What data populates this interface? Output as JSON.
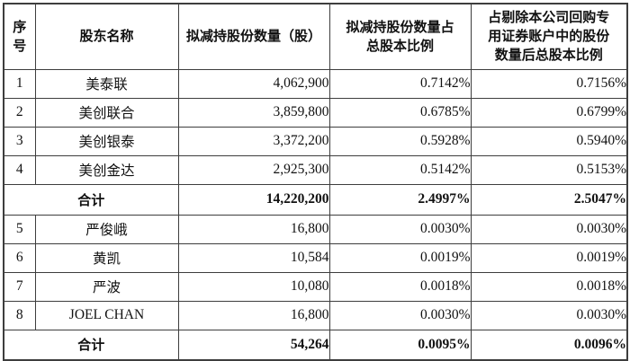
{
  "table": {
    "columns": [
      {
        "label": "序\n号"
      },
      {
        "label": "股东名称"
      },
      {
        "label": "拟减持股份数量（股）"
      },
      {
        "label": "拟减持股份数量占\n总股本比例"
      },
      {
        "label": "占剔除本公司回购专\n用证券账户中的股份\n数量后总股本比例"
      }
    ],
    "rows": [
      {
        "type": "data",
        "no": "1",
        "name": "美泰联",
        "shares": "4,062,900",
        "pct_total": "0.7142%",
        "pct_ex_buyback": "0.7156%"
      },
      {
        "type": "data",
        "no": "2",
        "name": "美创联合",
        "shares": "3,859,800",
        "pct_total": "0.6785%",
        "pct_ex_buyback": "0.6799%"
      },
      {
        "type": "data",
        "no": "3",
        "name": "美创银泰",
        "shares": "3,372,200",
        "pct_total": "0.5928%",
        "pct_ex_buyback": "0.5940%"
      },
      {
        "type": "data",
        "no": "4",
        "name": "美创金达",
        "shares": "2,925,300",
        "pct_total": "0.5142%",
        "pct_ex_buyback": "0.5153%"
      },
      {
        "type": "total",
        "label": "合计",
        "shares": "14,220,200",
        "pct_total": "2.4997%",
        "pct_ex_buyback": "2.5047%"
      },
      {
        "type": "data",
        "no": "5",
        "name": "严俊峨",
        "shares": "16,800",
        "pct_total": "0.0030%",
        "pct_ex_buyback": "0.0030%"
      },
      {
        "type": "data",
        "no": "6",
        "name": "黄凯",
        "shares": "10,584",
        "pct_total": "0.0019%",
        "pct_ex_buyback": "0.0019%"
      },
      {
        "type": "data",
        "no": "7",
        "name": "严波",
        "shares": "10,080",
        "pct_total": "0.0018%",
        "pct_ex_buyback": "0.0018%"
      },
      {
        "type": "data",
        "no": "8",
        "name": "JOEL CHAN",
        "shares": "16,800",
        "pct_total": "0.0030%",
        "pct_ex_buyback": "0.0030%"
      },
      {
        "type": "total",
        "label": "合计",
        "shares": "54,264",
        "pct_total": "0.0095%",
        "pct_ex_buyback": "0.0096%"
      }
    ]
  }
}
